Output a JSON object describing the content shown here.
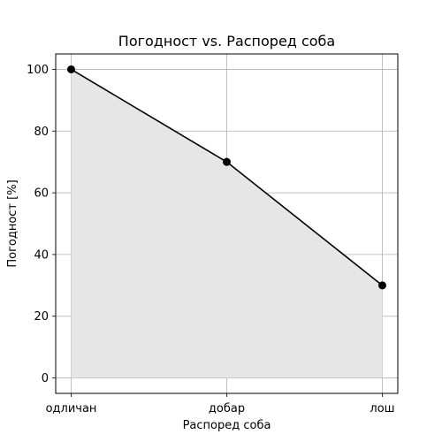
{
  "chart_data": {
    "type": "area",
    "title": "Погодност vs. Распоред соба",
    "xlabel": "Распоред соба",
    "ylabel": "Погодност [%]",
    "categories": [
      "одличан",
      "добар",
      "лош"
    ],
    "series": [
      {
        "values": [
          100,
          70,
          30
        ]
      }
    ],
    "ylim": [
      -5,
      105
    ],
    "yticks": [
      0,
      20,
      40,
      60,
      80,
      100
    ],
    "grid": true,
    "legend": "none",
    "colors": {
      "line": "#000000",
      "marker": "#000000",
      "fill": "#e6e6e6",
      "grid": "#b0b0b0",
      "spine": "#000000"
    }
  }
}
